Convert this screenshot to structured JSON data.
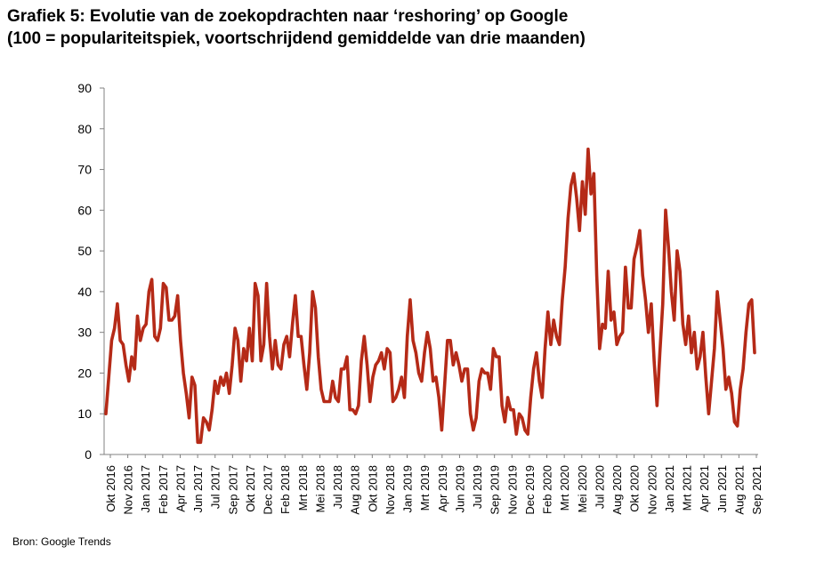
{
  "title_line1": "Grafiek 5: Evolutie van de zoekopdrachten naar ‘reshoring’ op Google",
  "title_line2": "(100 = populariteitspiek, voortschrijdend gemiddelde van drie maanden)",
  "source": "Bron: Google Trends",
  "chart_data": {
    "type": "line",
    "title": "Grafiek 5: Evolutie van de zoekopdrachten naar ‘reshoring’ op Google",
    "subtitle": "(100 = populariteitspiek, voortschrijdend gemiddelde van drie maanden)",
    "xlabel": "",
    "ylabel": "",
    "ylim": [
      0,
      90
    ],
    "yticks": [
      0,
      10,
      20,
      30,
      40,
      50,
      60,
      70,
      80,
      90
    ],
    "grid": false,
    "legend": "none",
    "color": "#b52a17",
    "x_tick_labels": [
      "Okt 2016",
      "Nov 2016",
      "Jan 2017",
      "Feb 2017",
      "Apr 2017",
      "Jun 2017",
      "Jul 2017",
      "Sep 2017",
      "Okt 2017",
      "Dec 2017",
      "Feb 2018",
      "Mrt 2018",
      "Mei 2018",
      "Jul 2018",
      "Aug 2018",
      "Okt 2018",
      "Nov 2018",
      "Jan 2019",
      "Mrt 2019",
      "Apr 2019",
      "Jun 2019",
      "Jul 2019",
      "Sep 2019",
      "Nov 2019",
      "Dec 2019",
      "Feb 2020",
      "Mrt 2020",
      "Mei 2020",
      "Jul 2020",
      "Aug 2020",
      "Okt 2020",
      "Nov 2020",
      "Jan 2021",
      "Mrt 2021",
      "Apr 2021",
      "Jun 2021",
      "Aug 2021",
      "Sep 2021"
    ],
    "series": [
      {
        "values": [
          10,
          19,
          28,
          31,
          37,
          28,
          27,
          22,
          18,
          24,
          21,
          34,
          28,
          31,
          32,
          40,
          43,
          29,
          28,
          31,
          42,
          41,
          33,
          33,
          34,
          39,
          28,
          20,
          15,
          9,
          19,
          17,
          3,
          3,
          9,
          8,
          6,
          11,
          18,
          15,
          19,
          17,
          20,
          15,
          22,
          31,
          28,
          18,
          26,
          23,
          31,
          23,
          42,
          39,
          23,
          27,
          42,
          29,
          21,
          28,
          22,
          21,
          27,
          29,
          24,
          32,
          39,
          29,
          29,
          22,
          16,
          25,
          40,
          36,
          24,
          16,
          13,
          13,
          13,
          18,
          14,
          13,
          21,
          21,
          24,
          11,
          11,
          10,
          12,
          23,
          29,
          22,
          13,
          19,
          22,
          23,
          25,
          21,
          26,
          25,
          13,
          14,
          16,
          19,
          14,
          29,
          38,
          28,
          25,
          20,
          18,
          25,
          30,
          26,
          18,
          19,
          14,
          6,
          17,
          28,
          28,
          22,
          25,
          22,
          18,
          21,
          21,
          10,
          6,
          9,
          18,
          21,
          20,
          20,
          16,
          26,
          24,
          24,
          12,
          8,
          14,
          11,
          11,
          5,
          10,
          9,
          6,
          5,
          14,
          21,
          25,
          18,
          14,
          26,
          35,
          27,
          33,
          29,
          27,
          38,
          46,
          58,
          66,
          69,
          63,
          55,
          67,
          59,
          75,
          64,
          69,
          44,
          26,
          32,
          31,
          45,
          33,
          35,
          27,
          29,
          30,
          46,
          36,
          36,
          48,
          51,
          55,
          44,
          38,
          30,
          37,
          23,
          12,
          25,
          37,
          60,
          51,
          40,
          33,
          50,
          45,
          32,
          27,
          34,
          25,
          30,
          21,
          24,
          30,
          19,
          10,
          18,
          26,
          40,
          33,
          26,
          16,
          19,
          15,
          8,
          7,
          16,
          21,
          30,
          37,
          38,
          25
        ]
      }
    ]
  }
}
